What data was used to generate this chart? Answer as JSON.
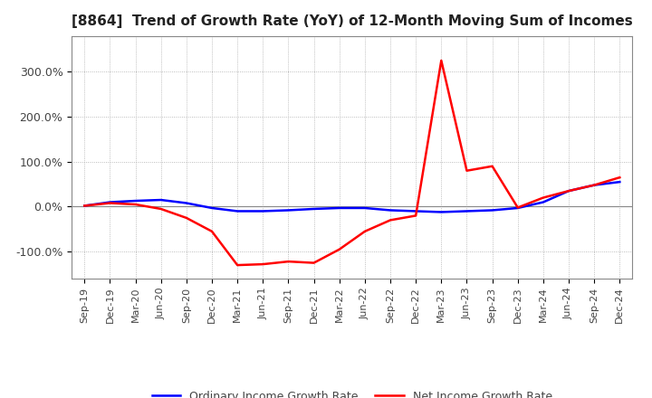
{
  "title": "[8864]  Trend of Growth Rate (YoY) of 12-Month Moving Sum of Incomes",
  "legend_ordinary": "Ordinary Income Growth Rate",
  "legend_net": "Net Income Growth Rate",
  "ordinary_color": "#0000FF",
  "net_color": "#FF0000",
  "background_color": "#FFFFFF",
  "grid_color": "#AAAAAA",
  "ylim": [
    -160,
    380
  ],
  "yticks": [
    -100,
    0,
    100,
    200,
    300
  ],
  "ytick_labels": [
    "-100.0%",
    "0.0%",
    "100.0%",
    "200.0%",
    "300.0%"
  ],
  "x_labels": [
    "Sep-19",
    "Dec-19",
    "Mar-20",
    "Jun-20",
    "Sep-20",
    "Dec-20",
    "Mar-21",
    "Jun-21",
    "Sep-21",
    "Dec-21",
    "Mar-22",
    "Jun-22",
    "Sep-22",
    "Dec-22",
    "Mar-23",
    "Jun-23",
    "Sep-23",
    "Dec-23",
    "Mar-24",
    "Jun-24",
    "Sep-24",
    "Dec-24"
  ],
  "ordinary_data": [
    2.0,
    10.0,
    13.0,
    15.0,
    8.0,
    -3.0,
    -10.0,
    -10.0,
    -8.0,
    -5.0,
    -3.0,
    -3.0,
    -8.0,
    -10.0,
    -12.0,
    -10.0,
    -8.0,
    -3.0,
    10.0,
    35.0,
    48.0,
    55.0
  ],
  "net_data": [
    2.0,
    8.0,
    5.0,
    -5.0,
    -25.0,
    -55.0,
    -130.0,
    -128.0,
    -122.0,
    -125.0,
    -95.0,
    -55.0,
    -30.0,
    -20.0,
    325.0,
    80.0,
    90.0,
    -2.0,
    20.0,
    35.0,
    48.0,
    65.0
  ]
}
